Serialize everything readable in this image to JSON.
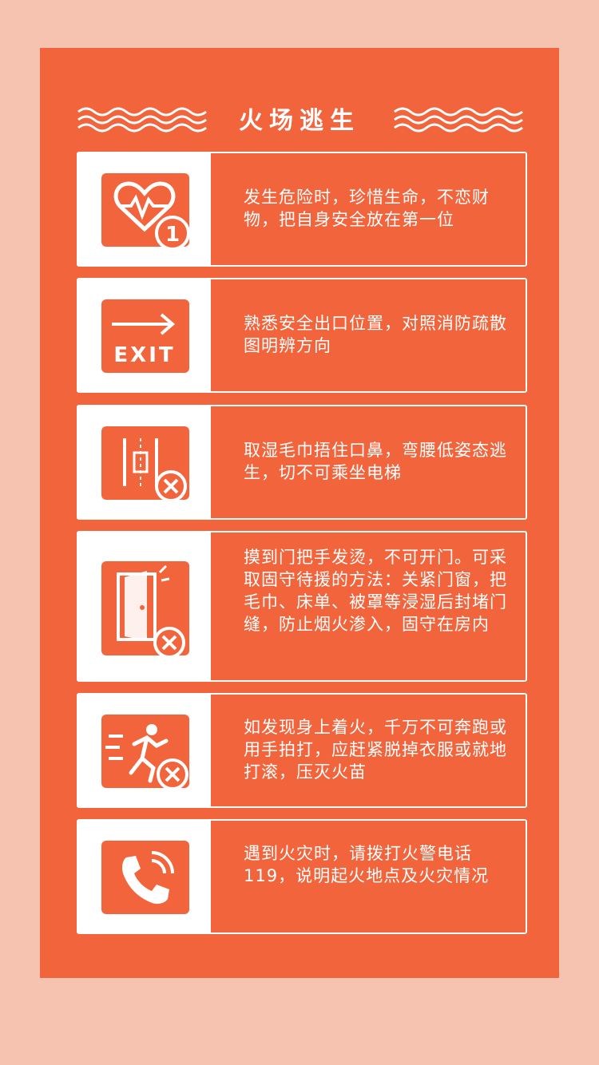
{
  "title": "火场逃生",
  "colors": {
    "background": "#f6c3b1",
    "panel": "#f2643c",
    "card_text": "#ffffff",
    "icon_box": "#ffffff"
  },
  "tips": [
    {
      "icon": "heart-pulse-first-icon",
      "text": "发生危险时，珍惜生命，不恋财物，把自身安全放在第一位"
    },
    {
      "icon": "exit-sign-icon",
      "text": "熟悉安全出口位置，对照消防疏散图明辨方向"
    },
    {
      "icon": "no-elevator-icon",
      "text": "取湿毛巾捂住口鼻，弯腰低姿态逃生，切不可乘坐电梯"
    },
    {
      "icon": "no-open-door-icon",
      "text": "摸到门把手发烫，不可开门。可采取固守待援的方法：关紧门窗，把毛巾、床单、被罩等浸湿后封堵门缝，防止烟火渗入，固守在房内"
    },
    {
      "icon": "no-running-icon",
      "text": "如发现身上着火，千万不可奔跑或用手拍打，应赶紧脱掉衣服或就地打滚，压灭火苗"
    },
    {
      "icon": "phone-call-icon",
      "text": "遇到火灾时，请拨打火警电话119，说明起火地点及火灾情况"
    }
  ]
}
